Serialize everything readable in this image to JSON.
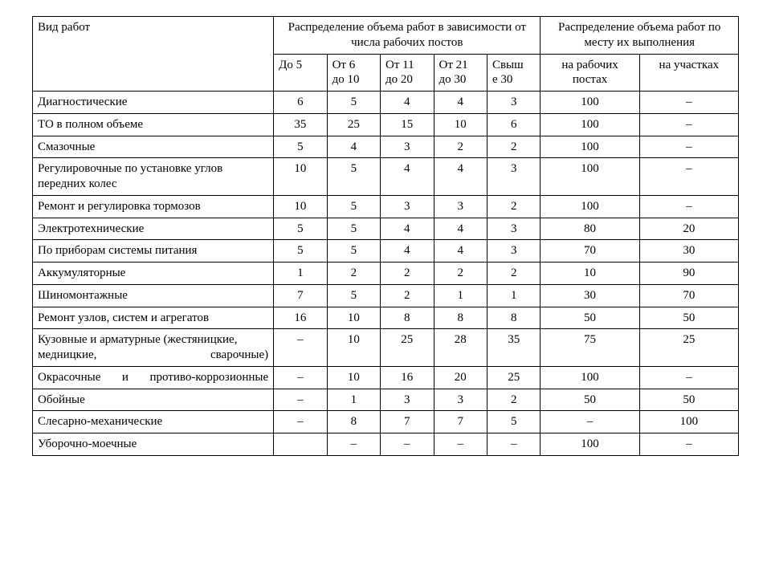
{
  "table": {
    "type": "table",
    "background_color": "#ffffff",
    "border_color": "#000000",
    "font_family": "Times New Roman",
    "font_size_pt": 11,
    "header": {
      "col_type": "Вид работ",
      "group_posts": "Распределение объема работ в зависимости от числа рабочих постов",
      "group_location": "Распределение объема работ по месту их выполнения",
      "posts": {
        "c1": "До 5",
        "c2_a": "От 6",
        "c2_b": "до 10",
        "c3_a": "От 11",
        "c3_b": "до 20",
        "c4_a": "От 21",
        "c4_b": "до 30",
        "c5_a": "Свыш",
        "c5_b": "е 30"
      },
      "loc": {
        "l1": "на рабочих постах",
        "l2": "на участках"
      }
    },
    "rows": [
      {
        "label": "Диагностические",
        "justify": false,
        "c1": "6",
        "c2": "5",
        "c3": "4",
        "c4": "4",
        "c5": "3",
        "l1": "100",
        "l2": "–"
      },
      {
        "label": "ТО в полном объеме",
        "justify": false,
        "c1": "35",
        "c2": "25",
        "c3": "15",
        "c4": "10",
        "c5": "6",
        "l1": "100",
        "l2": "–"
      },
      {
        "label": "Смазочные",
        "justify": false,
        "c1": "5",
        "c2": "4",
        "c3": "3",
        "c4": "2",
        "c5": "2",
        "l1": "100",
        "l2": "–"
      },
      {
        "label": "Регулировочные по установке углов передних колес",
        "justify": false,
        "c1": "10",
        "c2": "5",
        "c3": "4",
        "c4": "4",
        "c5": "3",
        "l1": "100",
        "l2": "–"
      },
      {
        "label": "Ремонт и регулировка тормозов",
        "justify": false,
        "c1": "10",
        "c2": "5",
        "c3": "3",
        "c4": "3",
        "c5": "2",
        "l1": "100",
        "l2": "–"
      },
      {
        "label": "Электротехнические",
        "justify": false,
        "c1": "5",
        "c2": "5",
        "c3": "4",
        "c4": "4",
        "c5": "3",
        "l1": "80",
        "l2": "20"
      },
      {
        "label": "По приборам системы питания",
        "justify": false,
        "c1": "5",
        "c2": "5",
        "c3": "4",
        "c4": "4",
        "c5": "3",
        "l1": "70",
        "l2": "30"
      },
      {
        "label": "Аккумуляторные",
        "justify": false,
        "c1": "1",
        "c2": "2",
        "c3": "2",
        "c4": "2",
        "c5": "2",
        "l1": "10",
        "l2": "90"
      },
      {
        "label": "Шиномонтажные",
        "justify": false,
        "c1": "7",
        "c2": "5",
        "c3": "2",
        "c4": "1",
        "c5": "1",
        "l1": "30",
        "l2": "70"
      },
      {
        "label": "Ремонт узлов, систем и агрегатов",
        "justify": false,
        "c1": "16",
        "c2": "10",
        "c3": "8",
        "c4": "8",
        "c5": "8",
        "l1": "50",
        "l2": "50"
      },
      {
        "label": "Кузовные и арматурные (жестяницкие, медницкие, сварочные)",
        "justify": true,
        "c1": "–",
        "c2": "10",
        "c3": "25",
        "c4": "28",
        "c5": "35",
        "l1": "75",
        "l2": "25"
      },
      {
        "label": "Окрасочные и противо-коррозионные",
        "justify": true,
        "c1": "–",
        "c2": "10",
        "c3": "16",
        "c4": "20",
        "c5": "25",
        "l1": "100",
        "l2": "–"
      },
      {
        "label": "Обойные",
        "justify": false,
        "c1": "–",
        "c2": "1",
        "c3": "3",
        "c4": "3",
        "c5": "2",
        "l1": "50",
        "l2": "50"
      },
      {
        "label": "Слесарно-механические",
        "justify": false,
        "c1": "–",
        "c2": "8",
        "c3": "7",
        "c4": "7",
        "c5": "5",
        "l1": "–",
        "l2": "100"
      },
      {
        "label": "Уборочно-моечные",
        "justify": false,
        "c1": "",
        "c2": "–",
        "c3": "–",
        "c4": "–",
        "c5": "–",
        "l1": "100",
        "l2": "–"
      }
    ]
  }
}
